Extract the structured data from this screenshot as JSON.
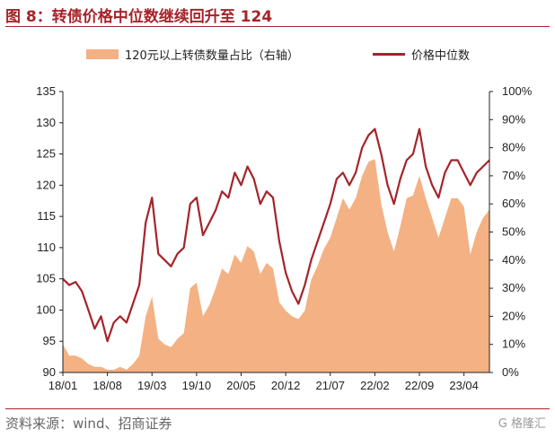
{
  "header": {
    "title": "图 8：转债价格中位数继续回升至 124"
  },
  "footer": {
    "source": "资料来源：wind、招商证券",
    "watermark": "G 格隆汇"
  },
  "colors": {
    "brand": "#a5242a",
    "area": "#f4b183"
  },
  "chart_data": {
    "type": "line+area",
    "legend": [
      {
        "name": "120元以上转债数量占比（右轴）",
        "style": "area",
        "color": "#f4b183"
      },
      {
        "name": "价格中位数",
        "style": "line",
        "color": "#a5242a"
      }
    ],
    "legend_position": "top-center",
    "grid": false,
    "x_ticks": [
      "18/01",
      "18/08",
      "19/03",
      "19/10",
      "20/05",
      "20/12",
      "21/07",
      "22/02",
      "22/09",
      "23/04"
    ],
    "x_range": [
      "2018-01",
      "2023-08"
    ],
    "y_left": {
      "ticks": [
        90,
        95,
        100,
        105,
        110,
        115,
        120,
        125,
        130,
        135
      ],
      "ylim": [
        90,
        135
      ]
    },
    "y_right": {
      "ticks": [
        "0%",
        "10%",
        "20%",
        "30%",
        "40%",
        "50%",
        "60%",
        "70%",
        "80%",
        "90%",
        "100%"
      ],
      "ylim": [
        0,
        100
      ]
    },
    "series": [
      {
        "name": "价格中位数",
        "axis": "left",
        "x": [
          "2018-01",
          "2018-02",
          "2018-03",
          "2018-04",
          "2018-05",
          "2018-06",
          "2018-07",
          "2018-08",
          "2018-09",
          "2018-10",
          "2018-11",
          "2018-12",
          "2019-01",
          "2019-02",
          "2019-03",
          "2019-04",
          "2019-05",
          "2019-06",
          "2019-07",
          "2019-08",
          "2019-09",
          "2019-10",
          "2019-11",
          "2019-12",
          "2020-01",
          "2020-02",
          "2020-03",
          "2020-04",
          "2020-05",
          "2020-06",
          "2020-07",
          "2020-08",
          "2020-09",
          "2020-10",
          "2020-11",
          "2020-12",
          "2021-01",
          "2021-02",
          "2021-03",
          "2021-04",
          "2021-05",
          "2021-06",
          "2021-07",
          "2021-08",
          "2021-09",
          "2021-10",
          "2021-11",
          "2021-12",
          "2022-01",
          "2022-02",
          "2022-03",
          "2022-04",
          "2022-05",
          "2022-06",
          "2022-07",
          "2022-08",
          "2022-09",
          "2022-10",
          "2022-11",
          "2022-12",
          "2023-01",
          "2023-02",
          "2023-03",
          "2023-04",
          "2023-05",
          "2023-06",
          "2023-07",
          "2023-08"
        ],
        "values": [
          105,
          104,
          104.5,
          103,
          100,
          97,
          99,
          95,
          98,
          99,
          98,
          101,
          104,
          114,
          118,
          109,
          108,
          107,
          109,
          110,
          117,
          118,
          112,
          114,
          116,
          119,
          118,
          122,
          120,
          123,
          121,
          117,
          119,
          118,
          111,
          106,
          103,
          101,
          104,
          108,
          111,
          114,
          117,
          121,
          122,
          120,
          122,
          126,
          128,
          129,
          125,
          120,
          117,
          121,
          124,
          125,
          129,
          123,
          120,
          118,
          122,
          124,
          124,
          122,
          120,
          122,
          123,
          124
        ]
      },
      {
        "name": "120元以上转债数量占比（右轴）",
        "axis": "right",
        "x": [
          "2018-01",
          "2018-02",
          "2018-03",
          "2018-04",
          "2018-05",
          "2018-06",
          "2018-07",
          "2018-08",
          "2018-09",
          "2018-10",
          "2018-11",
          "2018-12",
          "2019-01",
          "2019-02",
          "2019-03",
          "2019-04",
          "2019-05",
          "2019-06",
          "2019-07",
          "2019-08",
          "2019-09",
          "2019-10",
          "2019-11",
          "2019-12",
          "2020-01",
          "2020-02",
          "2020-03",
          "2020-04",
          "2020-05",
          "2020-06",
          "2020-07",
          "2020-08",
          "2020-09",
          "2020-10",
          "2020-11",
          "2020-12",
          "2021-01",
          "2021-02",
          "2021-03",
          "2021-04",
          "2021-05",
          "2021-06",
          "2021-07",
          "2021-08",
          "2021-09",
          "2021-10",
          "2021-11",
          "2021-12",
          "2022-01",
          "2022-02",
          "2022-03",
          "2022-04",
          "2022-05",
          "2022-06",
          "2022-07",
          "2022-08",
          "2022-09",
          "2022-10",
          "2022-11",
          "2022-12",
          "2023-01",
          "2023-02",
          "2023-03",
          "2023-04",
          "2023-05",
          "2023-06",
          "2023-07",
          "2023-08"
        ],
        "values": [
          10,
          6,
          6,
          5,
          3,
          2,
          2,
          1,
          1,
          2,
          1,
          3,
          6,
          20,
          27,
          12,
          10,
          9,
          12,
          14,
          30,
          32,
          20,
          24,
          30,
          37,
          35,
          42,
          39,
          45,
          43,
          35,
          39,
          37,
          25,
          22,
          20,
          19,
          22,
          33,
          38,
          44,
          48,
          55,
          62,
          58,
          62,
          70,
          75,
          76,
          60,
          50,
          43,
          52,
          62,
          63,
          70,
          62,
          55,
          48,
          55,
          62,
          62,
          59,
          42,
          50,
          55,
          58
        ]
      }
    ]
  }
}
